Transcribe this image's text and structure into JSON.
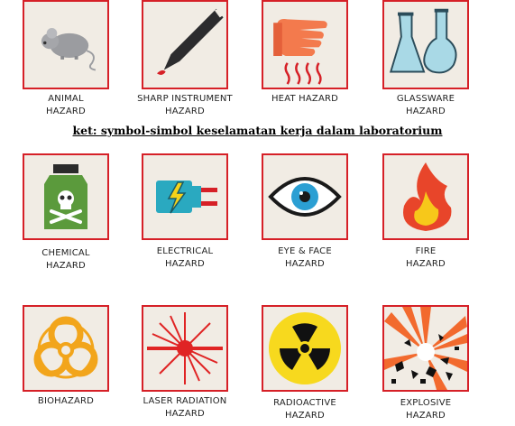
{
  "caption": "ket: symbol-simbol keselamatan kerja dalam laboratorium",
  "colors": {
    "frame": "#d62027",
    "tile_background": "#f1ece4"
  },
  "hazards": [
    {
      "label": "ANIMAL\nHAZARD",
      "icon": "mouse-icon"
    },
    {
      "label": "SHARP INSTRUMENT\nHAZARD",
      "icon": "scalpel-icon"
    },
    {
      "label": "HEAT HAZARD",
      "icon": "hot-glove-icon"
    },
    {
      "label": "GLASSWARE\nHAZARD",
      "icon": "flask-icon"
    },
    {
      "label": "CHEMICAL\nHAZARD",
      "icon": "poison-bottle-icon"
    },
    {
      "label": "ELECTRICAL\nHAZARD",
      "icon": "electric-plug-icon"
    },
    {
      "label": "EYE & FACE\nHAZARD",
      "icon": "eye-icon"
    },
    {
      "label": "FIRE\nHAZARD",
      "icon": "fire-icon"
    },
    {
      "label": "BIOHAZARD",
      "icon": "biohazard-icon"
    },
    {
      "label": "LASER RADIATION\nHAZARD",
      "icon": "laser-icon"
    },
    {
      "label": "RADIOACTIVE\nHAZARD",
      "icon": "radiation-icon"
    },
    {
      "label": "EXPLOSIVE\nHAZARD",
      "icon": "explosion-icon"
    }
  ]
}
